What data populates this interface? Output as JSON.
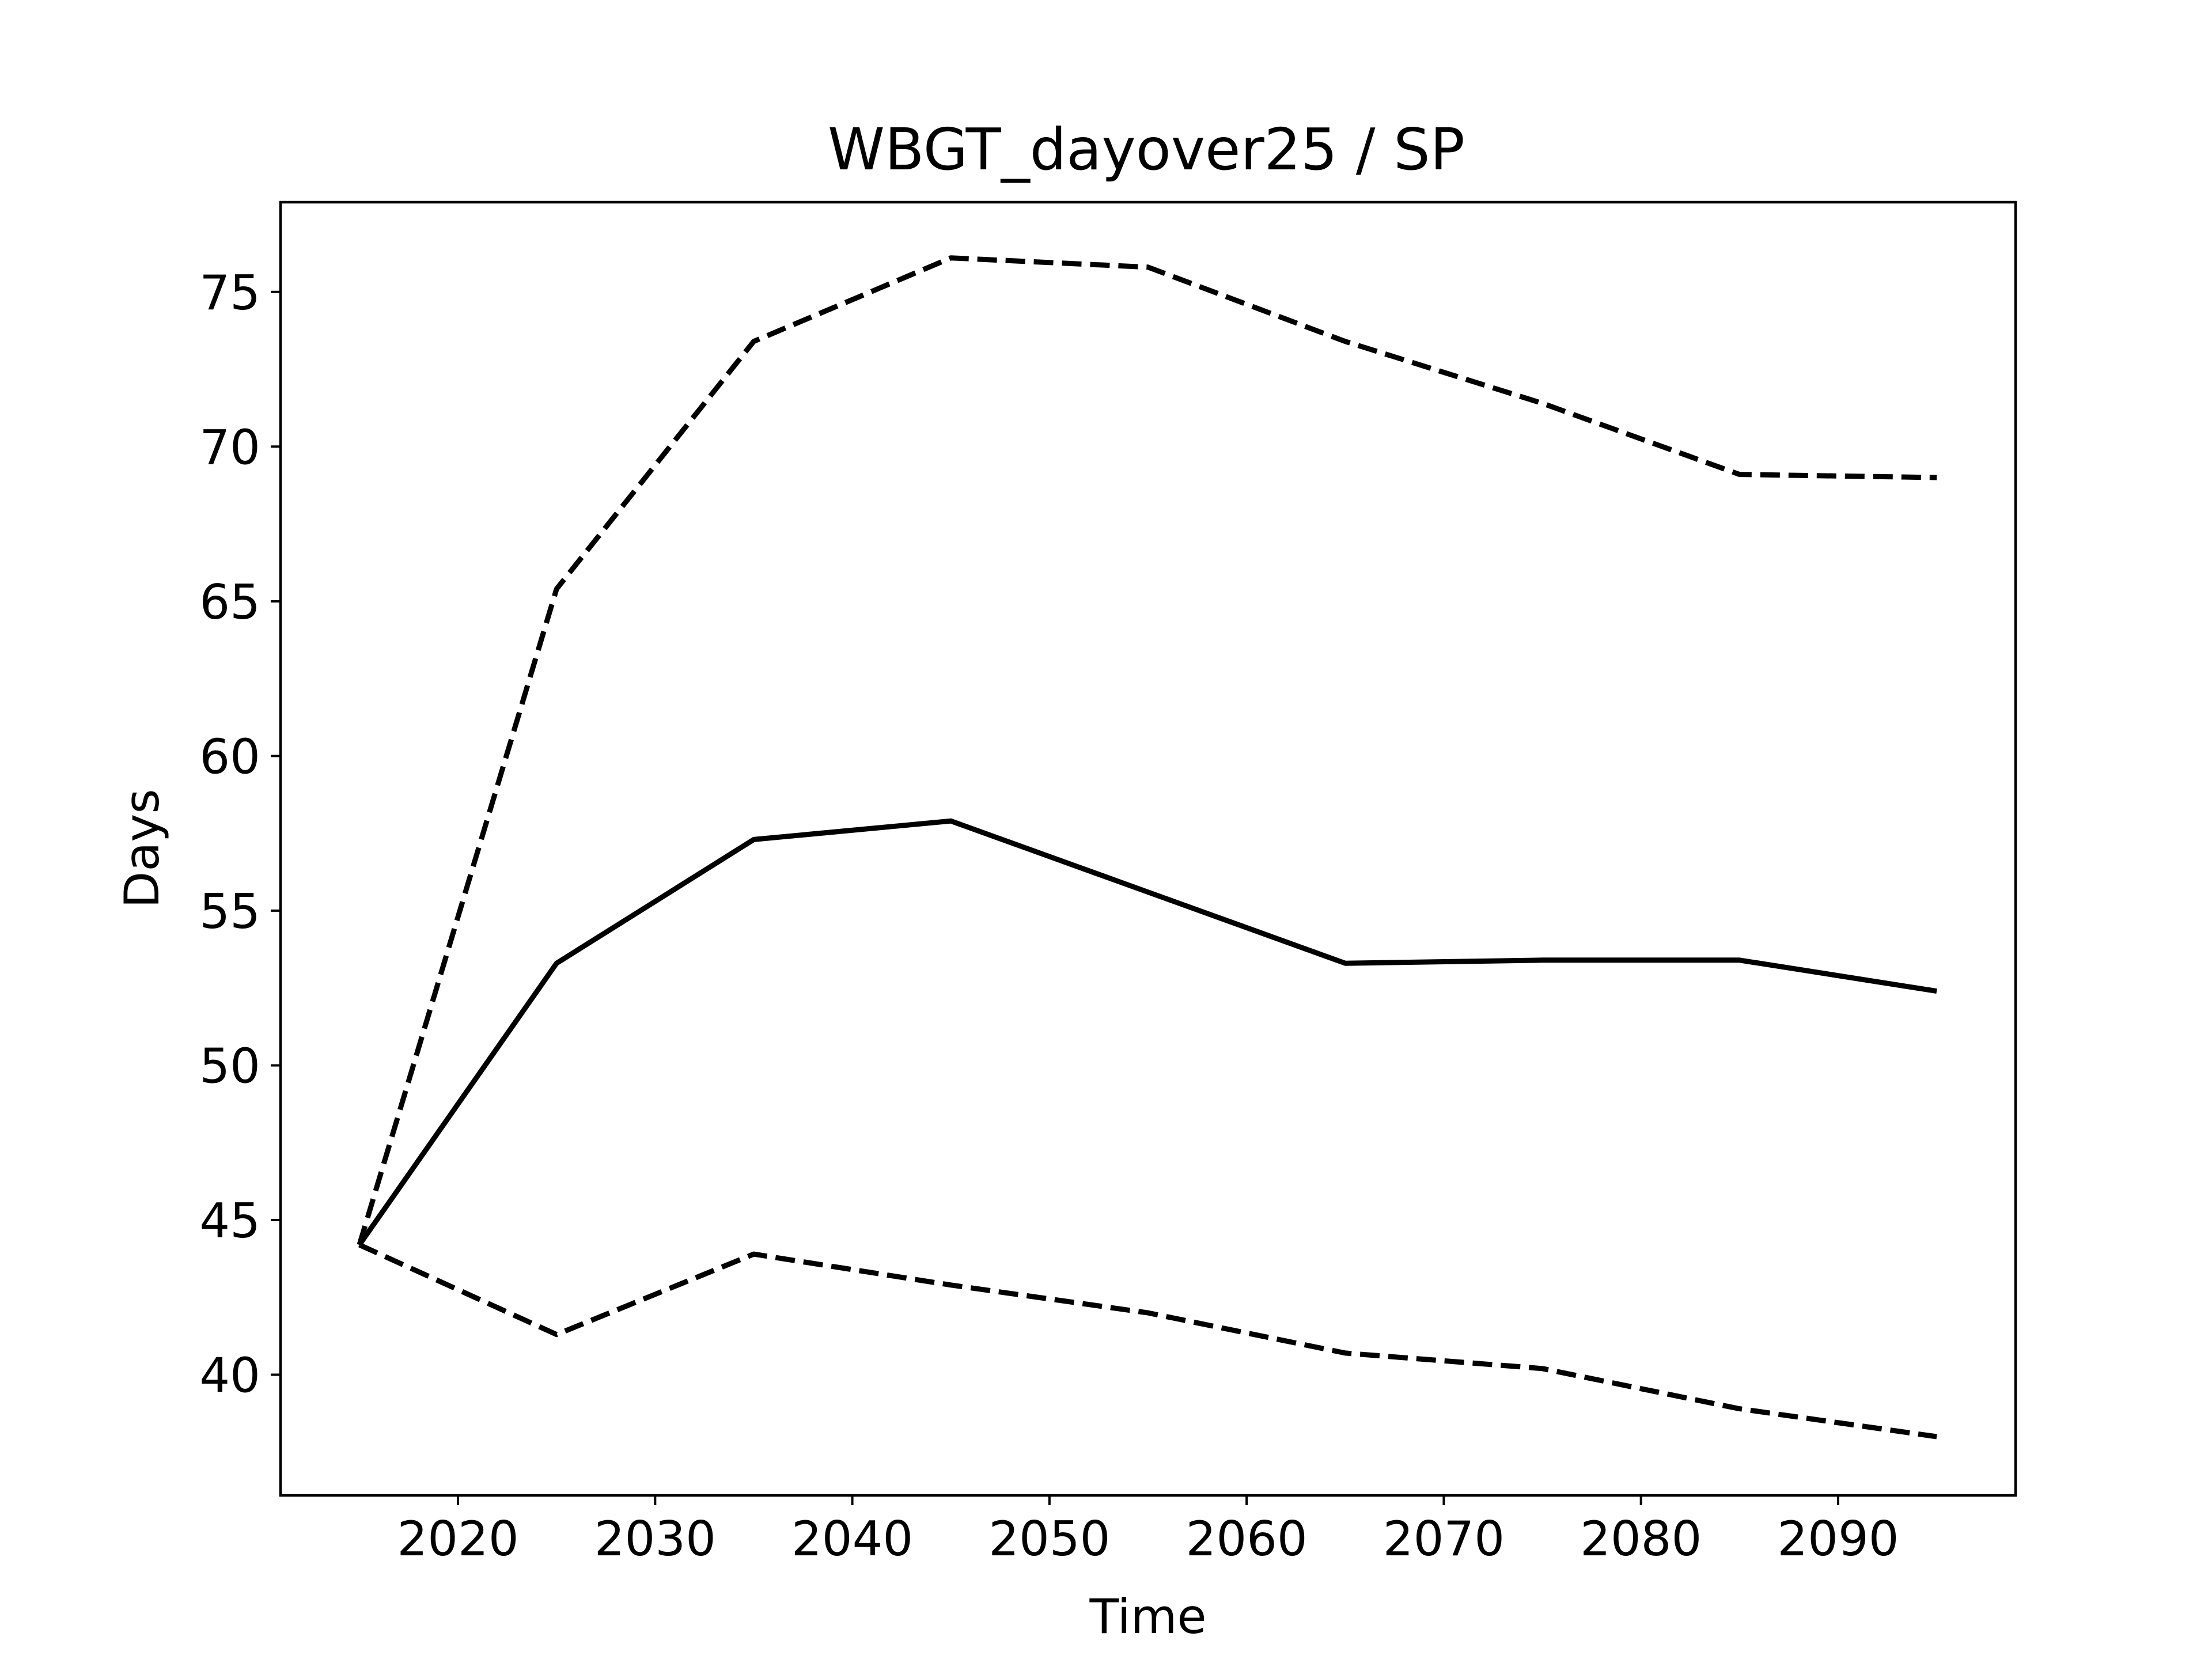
{
  "chart_data": {
    "type": "line",
    "title": "WBGT_dayover25 / SP",
    "xlabel": "Time",
    "ylabel": "Days",
    "x": [
      2015,
      2025,
      2035,
      2045,
      2055,
      2065,
      2075,
      2085,
      2095
    ],
    "xlim": [
      2011,
      2099
    ],
    "ylim": [
      36.1,
      77.9
    ],
    "xticks": [
      2020,
      2030,
      2040,
      2050,
      2060,
      2070,
      2080,
      2090
    ],
    "yticks": [
      40,
      45,
      50,
      55,
      60,
      65,
      70,
      75
    ],
    "grid": false,
    "series": [
      {
        "values": [
          44.2,
          65.4,
          73.4,
          76.1,
          75.8,
          73.4,
          71.4,
          69.1,
          69.0
        ],
        "style": "dashed",
        "color": "#000000"
      },
      {
        "values": [
          44.2,
          53.3,
          57.3,
          57.9,
          55.6,
          53.3,
          53.4,
          53.4,
          52.4
        ],
        "style": "solid",
        "color": "#000000"
      },
      {
        "values": [
          44.2,
          41.3,
          43.9,
          42.9,
          42.0,
          40.7,
          40.2,
          38.9,
          38.0
        ],
        "style": "dashed",
        "color": "#000000"
      }
    ]
  }
}
